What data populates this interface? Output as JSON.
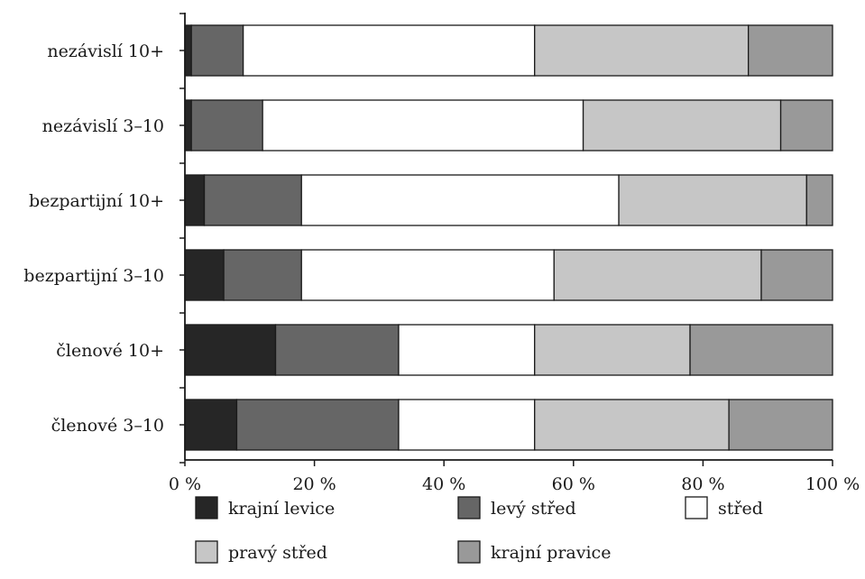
{
  "chart_data": {
    "type": "bar",
    "orientation": "horizontal",
    "stacked": true,
    "percent": true,
    "categories": [
      "nezávislí 10+",
      "nezávislí 3–10",
      "bezpartijní 10+",
      "bezpartijní 3–10",
      "členové 10+",
      "členové 3–10"
    ],
    "series": [
      {
        "name": "krajní levice",
        "color": "#262626",
        "values": [
          1,
          1,
          3,
          6,
          14,
          8
        ]
      },
      {
        "name": "levý střed",
        "color": "#666666",
        "values": [
          8,
          11,
          15,
          12,
          19,
          25
        ]
      },
      {
        "name": "střed",
        "color": "#ffffff",
        "values": [
          45,
          49.5,
          49,
          39,
          21,
          21
        ]
      },
      {
        "name": "pravý střed",
        "color": "#c6c6c6",
        "values": [
          33,
          30.5,
          29,
          32,
          24,
          30
        ]
      },
      {
        "name": "krajní pravice",
        "color": "#999999",
        "values": [
          13,
          8,
          4,
          11,
          22,
          16
        ]
      }
    ],
    "xticks": [
      "0 %",
      "20 %",
      "40 %",
      "60 %",
      "80 %",
      "100 %"
    ],
    "xlim": [
      0,
      100
    ],
    "title": "",
    "xlabel": "",
    "ylabel": "",
    "grid": false,
    "legend": "bottom"
  }
}
